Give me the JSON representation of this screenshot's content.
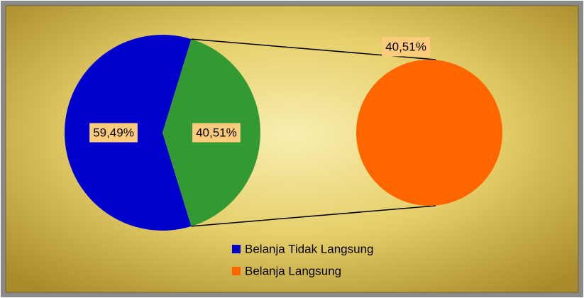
{
  "chart_data": {
    "type": "pie",
    "categories": [
      "Belanja Tidak Langsung",
      "Belanja Langsung"
    ],
    "values": [
      59.49,
      40.51
    ],
    "value_labels": [
      "59,49%",
      "40,51%"
    ],
    "colors": [
      "#0000cc",
      "#ff6600"
    ],
    "split_color": "#339933",
    "secondary": {
      "values": [
        40.51
      ],
      "value_labels": [
        "40,51%"
      ],
      "color": "#ff6600"
    }
  }
}
